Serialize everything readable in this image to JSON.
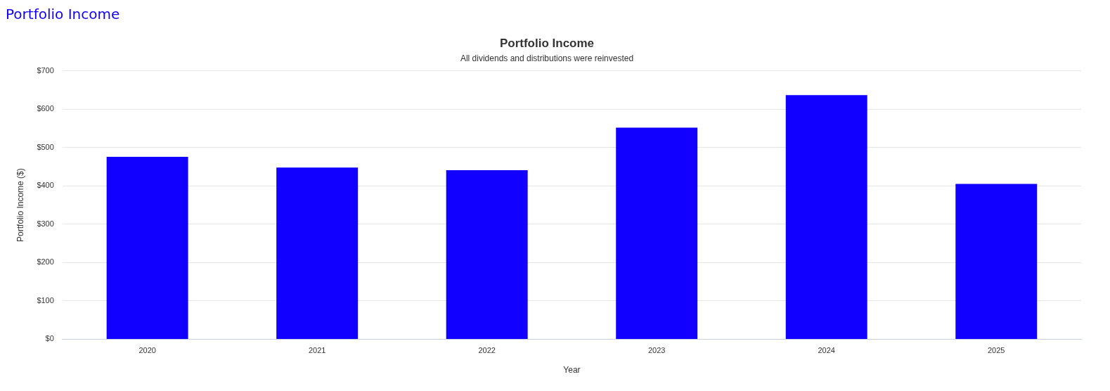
{
  "chart_data": {
    "type": "bar",
    "title": "Portfolio Income",
    "subtitle": "All dividends and distributions were reinvested",
    "xlabel": "Year",
    "ylabel": "Portfolio Income ($)",
    "categories": [
      "2020",
      "2021",
      "2022",
      "2023",
      "2024",
      "2025"
    ],
    "series": [
      {
        "color": "#1100ff",
        "values": [
          476,
          448,
          441,
          552,
          637,
          405
        ]
      }
    ],
    "ylim": [
      0,
      700
    ],
    "yticks": [
      {
        "value": 0,
        "label": "$0"
      },
      {
        "value": 100,
        "label": "$100"
      },
      {
        "value": 200,
        "label": "$200"
      },
      {
        "value": 300,
        "label": "$300"
      },
      {
        "value": 400,
        "label": "$400"
      },
      {
        "value": 500,
        "label": "$500"
      },
      {
        "value": 600,
        "label": "$600"
      },
      {
        "value": 700,
        "label": "$700"
      }
    ],
    "grid": "y",
    "legend": false
  }
}
